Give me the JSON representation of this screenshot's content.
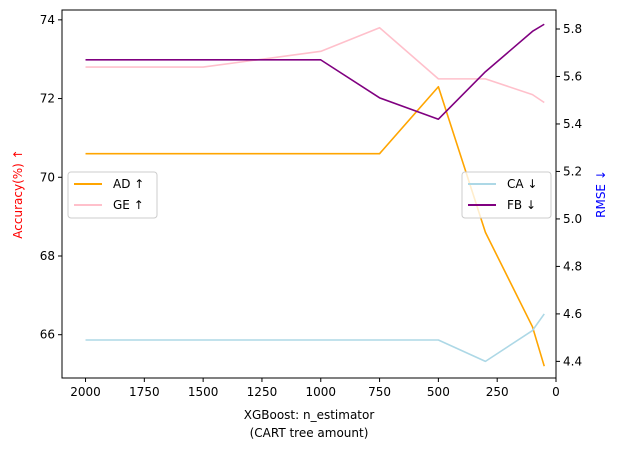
{
  "chart_data": {
    "type": "line",
    "xlabel": [
      "XGBoost: n_estimator",
      "(CART tree amount)"
    ],
    "x_inverted": true,
    "xlim": [
      2100,
      0
    ],
    "x_ticks": [
      2000,
      1750,
      1500,
      1250,
      1000,
      750,
      500,
      250,
      0
    ],
    "left_axis": {
      "label": "Accuracy(%) ↑",
      "color": "#ff0000",
      "ylim": [
        64.9,
        74.25
      ],
      "ticks": [
        66,
        68,
        70,
        72,
        74
      ]
    },
    "right_axis": {
      "label": "RMSE ↓",
      "color": "#0000ff",
      "ylim": [
        4.33,
        5.88
      ],
      "ticks": [
        4.4,
        4.6,
        4.8,
        5.0,
        5.2,
        5.4,
        5.6,
        5.8
      ],
      "tick_labels": [
        "4.4",
        "4.6",
        "4.8",
        "5.0",
        "5.2",
        "5.4",
        "5.6",
        "5.8"
      ]
    },
    "series": [
      {
        "name": "AD ↑",
        "axis": "left",
        "color": "#ffa500",
        "x": [
          2000,
          1750,
          1500,
          1250,
          1000,
          750,
          500,
          300,
          100,
          50
        ],
        "y": [
          70.6,
          70.6,
          70.6,
          70.6,
          70.6,
          70.6,
          72.3,
          68.6,
          66.2,
          65.2
        ]
      },
      {
        "name": "GE ↑",
        "axis": "left",
        "color": "#ffc0cb",
        "x": [
          2000,
          1500,
          1000,
          750,
          500,
          300,
          100,
          50
        ],
        "y": [
          72.8,
          72.8,
          73.2,
          73.8,
          72.5,
          72.5,
          72.1,
          71.9
        ]
      },
      {
        "name": "CA ↓",
        "axis": "right",
        "color": "#add8e6",
        "x": [
          2000,
          1750,
          1500,
          1250,
          1000,
          750,
          500,
          300,
          100,
          50
        ],
        "y": [
          4.49,
          4.49,
          4.49,
          4.49,
          4.49,
          4.49,
          4.49,
          4.4,
          4.53,
          4.6
        ]
      },
      {
        "name": "FB ↓",
        "axis": "right",
        "color": "#800080",
        "x": [
          2000,
          1750,
          1500,
          1250,
          1000,
          750,
          500,
          300,
          100,
          50
        ],
        "y": [
          5.67,
          5.67,
          5.67,
          5.67,
          5.67,
          5.51,
          5.42,
          5.62,
          5.79,
          5.82
        ]
      }
    ],
    "legends": [
      {
        "placement": "center-left",
        "entries": [
          "AD ↑",
          "GE ↑"
        ]
      },
      {
        "placement": "center-right",
        "entries": [
          "CA ↓",
          "FB ↓"
        ]
      }
    ],
    "grid": false
  }
}
